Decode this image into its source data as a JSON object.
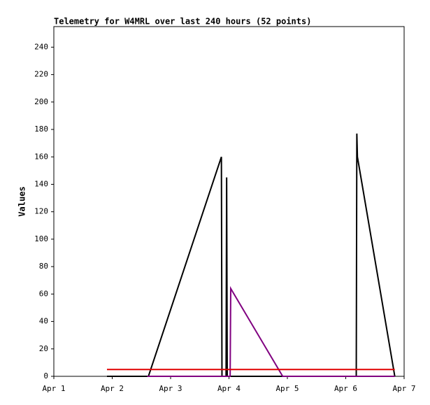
{
  "chart_data": {
    "type": "line",
    "title": "Telemetry for W4MRL over last 240 hours (52 points)",
    "y_label": "Values",
    "xlim": [
      1,
      7
    ],
    "ylim": [
      0,
      255
    ],
    "xticks": [
      {
        "value": 1,
        "label": "Apr 1"
      },
      {
        "value": 2,
        "label": "Apr 2"
      },
      {
        "value": 3,
        "label": "Apr 3"
      },
      {
        "value": 4,
        "label": "Apr 4"
      },
      {
        "value": 5,
        "label": "Apr 5"
      },
      {
        "value": 6,
        "label": "Apr 6"
      },
      {
        "value": 7,
        "label": "Apr 7"
      }
    ],
    "yticks": [
      0,
      20,
      40,
      60,
      80,
      100,
      120,
      140,
      160,
      180,
      200,
      220,
      240
    ],
    "series": [
      {
        "color": "#000000",
        "x": [
          1.91,
          2.62,
          3.87,
          3.88,
          3.95,
          3.96,
          3.97,
          4.92,
          6.18,
          6.19,
          6.2,
          6.84
        ],
        "values": [
          0,
          0,
          160,
          0,
          0,
          145,
          0,
          0,
          0,
          177,
          160,
          0
        ]
      },
      {
        "color": "#800080",
        "x": [
          2.6,
          4.02,
          4.03,
          4.92,
          6.84
        ],
        "values": [
          0,
          0,
          64,
          0,
          0
        ]
      },
      {
        "color": "#e00000",
        "x": [
          1.91,
          6.84
        ],
        "values": [
          5,
          5
        ]
      }
    ]
  }
}
